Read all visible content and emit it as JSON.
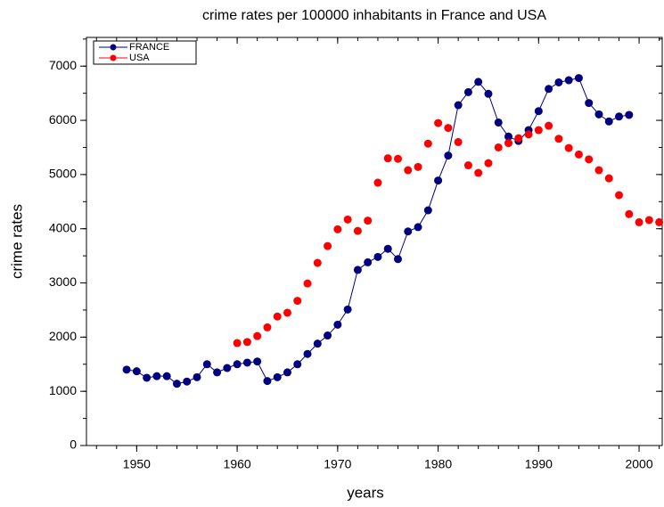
{
  "chart_data": {
    "type": "scatter",
    "title": "crime rates per 100000 inhabitants in France and USA",
    "x_label": "years",
    "y_label": "crime rates",
    "x": [
      1949,
      1950,
      1951,
      1952,
      1953,
      1954,
      1955,
      1956,
      1957,
      1958,
      1959,
      1960,
      1961,
      1962,
      1963,
      1964,
      1965,
      1966,
      1967,
      1968,
      1969,
      1970,
      1971,
      1972,
      1973,
      1974,
      1975,
      1976,
      1977,
      1978,
      1979,
      1980,
      1981,
      1982,
      1983,
      1984,
      1985,
      1986,
      1987,
      1988,
      1989,
      1990,
      1991,
      1992,
      1993,
      1994,
      1995,
      1996,
      1997,
      1998,
      1999,
      2000,
      2001,
      2002
    ],
    "series": [
      {
        "name": "FRANCE",
        "color": "#000080",
        "show_line": true,
        "values": [
          1400,
          1370,
          1250,
          1280,
          1280,
          1140,
          1180,
          1260,
          1500,
          1350,
          1430,
          1500,
          1530,
          1550,
          1190,
          1260,
          1350,
          1500,
          1690,
          1880,
          2030,
          2230,
          2510,
          3240,
          3380,
          3480,
          3630,
          3440,
          3950,
          4030,
          4340,
          4890,
          5350,
          6280,
          6520,
          6710,
          6490,
          5960,
          5700,
          5620,
          5820,
          6170,
          6580,
          6700,
          6740,
          6780,
          6320,
          6110,
          5980,
          6070,
          6100,
          null,
          null,
          null
        ]
      },
      {
        "name": "USA",
        "color": "#ff0000",
        "show_line": false,
        "values": [
          null,
          null,
          null,
          null,
          null,
          null,
          null,
          null,
          null,
          null,
          null,
          1890,
          1910,
          2020,
          2180,
          2380,
          2450,
          2670,
          2990,
          3370,
          3680,
          3990,
          4170,
          3960,
          4150,
          4850,
          5300,
          5290,
          5080,
          5140,
          5570,
          5950,
          5860,
          5600,
          5170,
          5030,
          5210,
          5500,
          5580,
          5670,
          5740,
          5820,
          5900,
          5660,
          5490,
          5370,
          5280,
          5080,
          4930,
          4620,
          4270,
          4120,
          4160,
          4120
        ]
      }
    ],
    "xlim": [
      1945,
      2002.3
    ],
    "ylim": [
      0,
      7530
    ],
    "xticks": [
      1950,
      1960,
      1970,
      1980,
      1990,
      2000
    ],
    "yticks": [
      0,
      1000,
      2000,
      3000,
      4000,
      5000,
      6000,
      7000
    ],
    "legend": "upper left"
  }
}
